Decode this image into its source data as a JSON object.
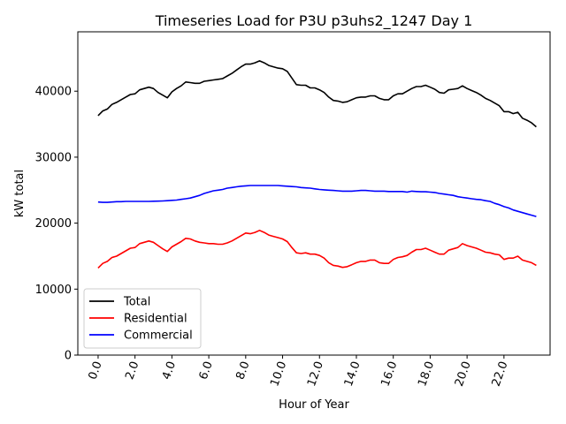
{
  "chart_data": {
    "type": "line",
    "title": "Timeseries Load for P3U p3uhs2_1247  Day 1",
    "xlabel": "Hour of Year",
    "ylabel": "kW total",
    "xlim": [
      -1.1,
      24.5
    ],
    "ylim": [
      0,
      49000
    ],
    "x_ticks": [
      0,
      2,
      4,
      6,
      8,
      10,
      12,
      14,
      16,
      18,
      20,
      22
    ],
    "x_tick_labels": [
      "0.0",
      "2.0",
      "4.0",
      "6.0",
      "8.0",
      "10.0",
      "12.0",
      "14.0",
      "16.0",
      "18.0",
      "20.0",
      "22.0"
    ],
    "y_ticks": [
      0,
      10000,
      20000,
      30000,
      40000
    ],
    "y_tick_labels": [
      "0",
      "10000",
      "20000",
      "30000",
      "40000"
    ],
    "grid": false,
    "legend_position": "lower-left",
    "x": [
      0,
      0.25,
      0.5,
      0.75,
      1,
      1.25,
      1.5,
      1.75,
      2,
      2.25,
      2.5,
      2.75,
      3,
      3.25,
      3.5,
      3.75,
      4,
      4.25,
      4.5,
      4.75,
      5,
      5.25,
      5.5,
      5.75,
      6,
      6.25,
      6.5,
      6.75,
      7,
      7.25,
      7.5,
      7.75,
      8,
      8.25,
      8.5,
      8.75,
      9,
      9.25,
      9.5,
      9.75,
      10,
      10.25,
      10.5,
      10.75,
      11,
      11.25,
      11.5,
      11.75,
      12,
      12.25,
      12.5,
      12.75,
      13,
      13.25,
      13.5,
      13.75,
      14,
      14.25,
      14.5,
      14.75,
      15,
      15.25,
      15.5,
      15.75,
      16,
      16.25,
      16.5,
      16.75,
      17,
      17.25,
      17.5,
      17.75,
      18,
      18.25,
      18.5,
      18.75,
      19,
      19.25,
      19.5,
      19.75,
      20,
      20.25,
      20.5,
      20.75,
      21,
      21.25,
      21.5,
      21.75,
      22,
      22.25,
      22.5,
      22.75,
      23,
      23.25,
      23.5,
      23.75
    ],
    "series": [
      {
        "name": "Total",
        "color": "#000000",
        "values": [
          36300,
          37000,
          37300,
          38000,
          38300,
          38700,
          39100,
          39500,
          39600,
          40200,
          40400,
          40600,
          40400,
          39800,
          39400,
          39000,
          39900,
          40400,
          40800,
          41400,
          41300,
          41200,
          41200,
          41500,
          41600,
          41700,
          41800,
          41900,
          42300,
          42700,
          43200,
          43700,
          44100,
          44100,
          44300,
          44600,
          44300,
          43900,
          43700,
          43500,
          43400,
          43000,
          42000,
          41000,
          40900,
          40900,
          40500,
          40500,
          40200,
          39800,
          39100,
          38600,
          38500,
          38300,
          38400,
          38700,
          39000,
          39100,
          39100,
          39300,
          39300,
          38900,
          38700,
          38700,
          39300,
          39600,
          39600,
          40000,
          40400,
          40700,
          40700,
          40900,
          40600,
          40300,
          39800,
          39700,
          40200,
          40300,
          40400,
          40800,
          40400,
          40100,
          39800,
          39400,
          38900,
          38600,
          38200,
          37800,
          36900,
          36900,
          36600,
          36800,
          35900,
          35600,
          35200,
          34600
        ]
      },
      {
        "name": "Residential",
        "color": "#ff0000",
        "values": [
          13200,
          13900,
          14200,
          14800,
          15000,
          15400,
          15800,
          16200,
          16300,
          16900,
          17100,
          17300,
          17100,
          16600,
          16100,
          15700,
          16400,
          16800,
          17200,
          17700,
          17600,
          17300,
          17100,
          17000,
          16900,
          16900,
          16800,
          16800,
          17000,
          17300,
          17700,
          18100,
          18500,
          18400,
          18600,
          18900,
          18600,
          18200,
          18000,
          17800,
          17600,
          17200,
          16300,
          15500,
          15400,
          15500,
          15300,
          15300,
          15100,
          14700,
          14000,
          13600,
          13500,
          13300,
          13400,
          13700,
          14000,
          14200,
          14200,
          14400,
          14400,
          14000,
          13900,
          13900,
          14500,
          14800,
          14900,
          15100,
          15600,
          16000,
          16000,
          16200,
          15900,
          15600,
          15300,
          15300,
          15900,
          16100,
          16300,
          16900,
          16600,
          16400,
          16200,
          15900,
          15600,
          15500,
          15300,
          15200,
          14500,
          14700,
          14700,
          15000,
          14400,
          14200,
          14000,
          13600
        ]
      },
      {
        "name": "Commercial",
        "color": "#0000ff",
        "values": [
          23200,
          23150,
          23150,
          23200,
          23250,
          23250,
          23300,
          23300,
          23300,
          23300,
          23300,
          23300,
          23320,
          23340,
          23360,
          23400,
          23450,
          23500,
          23600,
          23700,
          23800,
          24000,
          24200,
          24500,
          24700,
          24900,
          25000,
          25100,
          25300,
          25400,
          25500,
          25600,
          25650,
          25700,
          25700,
          25700,
          25700,
          25700,
          25700,
          25700,
          25650,
          25600,
          25550,
          25500,
          25400,
          25350,
          25300,
          25200,
          25100,
          25050,
          25000,
          24950,
          24900,
          24850,
          24850,
          24850,
          24900,
          24950,
          24950,
          24900,
          24850,
          24850,
          24850,
          24800,
          24800,
          24800,
          24800,
          24700,
          24850,
          24800,
          24750,
          24750,
          24700,
          24650,
          24500,
          24400,
          24300,
          24200,
          24000,
          23900,
          23800,
          23700,
          23600,
          23550,
          23400,
          23300,
          23000,
          22800,
          22500,
          22300,
          22000,
          21800,
          21600,
          21400,
          21200,
          21000
        ]
      }
    ]
  }
}
